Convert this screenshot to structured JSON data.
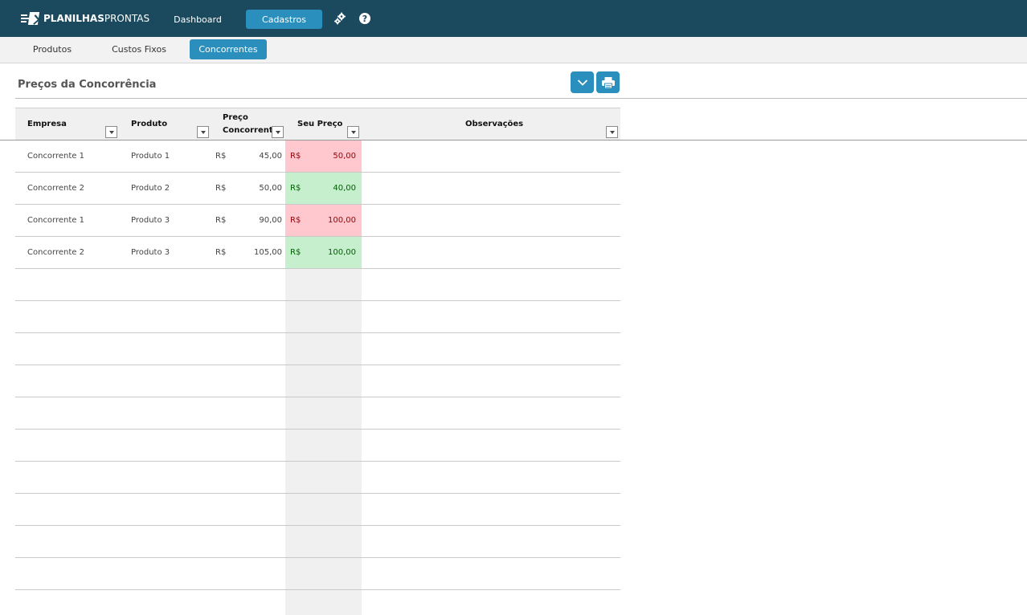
{
  "brand": {
    "name_bold": "PLANILHAS",
    "name_light": "PRONTAS"
  },
  "topnav": {
    "items": [
      {
        "label": "Dashboard",
        "active": false
      },
      {
        "label": "Cadastros",
        "active": true
      }
    ],
    "settings_icon": "gears-icon",
    "help_icon": "help-icon",
    "help_glyph": "?"
  },
  "subnav": {
    "tabs": [
      {
        "label": "Produtos",
        "active": false
      },
      {
        "label": "Custos Fixos",
        "active": false
      },
      {
        "label": "Concorrentes",
        "active": true
      }
    ]
  },
  "page": {
    "title": "Preços da Concorrência",
    "actions": [
      {
        "icon": "chevron-down-icon"
      },
      {
        "icon": "print-icon"
      }
    ]
  },
  "table": {
    "columns": [
      {
        "label": "Empresa"
      },
      {
        "label": "Produto"
      },
      {
        "label_line1": "Preço",
        "label_line2": "Concorrente"
      },
      {
        "label": "Seu Preço"
      },
      {
        "label": "Observações"
      }
    ],
    "currency": "R$",
    "rows": [
      {
        "empresa": "Concorrente 1",
        "produto": "Produto 1",
        "preco_concorrente": "45,00",
        "seu_preco": "50,00",
        "status": "higher",
        "observacoes": ""
      },
      {
        "empresa": "Concorrente 2",
        "produto": "Produto 2",
        "preco_concorrente": "50,00",
        "seu_preco": "40,00",
        "status": "lower",
        "observacoes": ""
      },
      {
        "empresa": "Concorrente 1",
        "produto": "Produto 3",
        "preco_concorrente": "90,00",
        "seu_preco": "100,00",
        "status": "higher",
        "observacoes": ""
      },
      {
        "empresa": "Concorrente 2",
        "produto": "Produto 3",
        "preco_concorrente": "105,00",
        "seu_preco": "100,00",
        "status": "lower",
        "observacoes": ""
      }
    ],
    "empty_rows": 10
  },
  "colors": {
    "topbar": "#1b4a5f",
    "accent": "#2b8fbd",
    "higher_fill": "#ffc7ce",
    "higher_text": "#9c0006",
    "lower_fill": "#c6efce",
    "lower_text": "#006100"
  }
}
